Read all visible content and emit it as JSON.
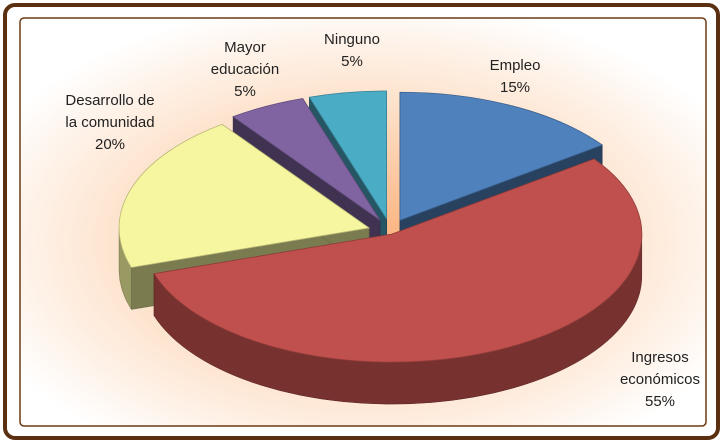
{
  "chart_data": {
    "type": "pie3d",
    "categories": [
      "Empleo",
      "Ingresos económicos",
      "Desarrollo de la comunidad",
      "Mayor educación",
      "Ninguno"
    ],
    "values": [
      15,
      55,
      20,
      5,
      5
    ],
    "value_labels": [
      "15%",
      "55%",
      "20%",
      "5%",
      "5%"
    ],
    "colors": [
      "#4f81bd",
      "#c0504d",
      "#f6f6a0",
      "#8064a2",
      "#4bacc6"
    ]
  }
}
